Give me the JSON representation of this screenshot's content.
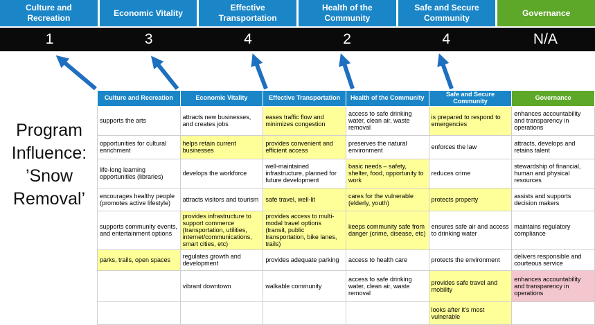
{
  "title": "Program Influence: ’Snow Removal’",
  "colors": {
    "header_blue": "#1a86c8",
    "header_green": "#5ea829",
    "band_bg": "#0a0a0a",
    "arrow_blue": "#1e6fc0",
    "highlight_yellow": "#ffff99",
    "highlight_pink": "#f4c7ce"
  },
  "scoreboard": {
    "columns": [
      {
        "label": "Culture and Recreation",
        "score": "1",
        "color": "blue"
      },
      {
        "label": "Economic Vitality",
        "score": "3",
        "color": "blue"
      },
      {
        "label": "Effective Transportation",
        "score": "4",
        "color": "blue"
      },
      {
        "label": "Health of the Community",
        "score": "2",
        "color": "blue"
      },
      {
        "label": "Safe and Secure Community",
        "score": "4",
        "color": "blue"
      },
      {
        "label": "Governance",
        "score": "N/A",
        "color": "green"
      }
    ]
  },
  "table": {
    "headers": [
      {
        "label": "Culture and Recreation",
        "color": "blue"
      },
      {
        "label": "Economic Vitality",
        "color": "blue"
      },
      {
        "label": "Effective Transportation",
        "color": "blue"
      },
      {
        "label": "Health of the Community",
        "color": "blue"
      },
      {
        "label": "Safe and Secure Community",
        "color": "blue"
      },
      {
        "label": "Governance",
        "color": "green"
      }
    ],
    "rows": [
      [
        {
          "text": "supports the arts",
          "hl": "none"
        },
        {
          "text": "attracts new businesses, and creates jobs",
          "hl": "none"
        },
        {
          "text": "eases traffic flow and minimizes congestion",
          "hl": "yellow"
        },
        {
          "text": "access to safe drinking water, clean air, waste removal",
          "hl": "none"
        },
        {
          "text": "is prepared to respond to emergencies",
          "hl": "yellow"
        },
        {
          "text": "enhances accountability and transparency in operations",
          "hl": "none"
        }
      ],
      [
        {
          "text": "opportunities for cultural enrichment",
          "hl": "none"
        },
        {
          "text": "helps retain current businesses",
          "hl": "yellow"
        },
        {
          "text": "provides convenient and efficient access",
          "hl": "yellow"
        },
        {
          "text": "preserves the natural environment",
          "hl": "none"
        },
        {
          "text": "enforces the law",
          "hl": "none"
        },
        {
          "text": "attracts, develops and retains talent",
          "hl": "none"
        }
      ],
      [
        {
          "text": "life-long learning opportunities (libraries)",
          "hl": "none"
        },
        {
          "text": "develops the workforce",
          "hl": "none"
        },
        {
          "text": "well-maintained infrastructure, planned for future development",
          "hl": "none"
        },
        {
          "text": "basic needs – safety, shelter, food, opportunity to work",
          "hl": "yellow"
        },
        {
          "text": "reduces crime",
          "hl": "none"
        },
        {
          "text": "stewardship of financial, human and physical resources",
          "hl": "none"
        }
      ],
      [
        {
          "text": "encourages healthy people (promotes active lifestyle)",
          "hl": "none"
        },
        {
          "text": "attracts visitors and tourism",
          "hl": "none"
        },
        {
          "text": "safe travel, well-lit",
          "hl": "yellow"
        },
        {
          "text": "cares for the vulnerable (elderly, youth)",
          "hl": "yellow"
        },
        {
          "text": "protects property",
          "hl": "yellow"
        },
        {
          "text": "assists and supports decision makers",
          "hl": "none"
        }
      ],
      [
        {
          "text": "supports community events, and entertainment options",
          "hl": "none"
        },
        {
          "text": "provides infrastructure to support commerce (transportation, utilities, internet/communications, smart cities, etc)",
          "hl": "yellow"
        },
        {
          "text": "provides access to multi-modal travel options (transit, public transportation, bike lanes, trails)",
          "hl": "yellow"
        },
        {
          "text": "keeps community safe from danger (crime, disease, etc)",
          "hl": "yellow"
        },
        {
          "text": "ensures safe air and access to drinking water",
          "hl": "none"
        },
        {
          "text": "maintains regulatory compliance",
          "hl": "none"
        }
      ],
      [
        {
          "text": "parks, trails, open spaces",
          "hl": "yellow"
        },
        {
          "text": "regulates growth and development",
          "hl": "none"
        },
        {
          "text": "provides adequate parking",
          "hl": "none"
        },
        {
          "text": "access to health care",
          "hl": "none"
        },
        {
          "text": "protects the environment",
          "hl": "none"
        },
        {
          "text": "delivers responsible and courteous service",
          "hl": "none"
        }
      ],
      [
        {
          "text": "",
          "hl": "none"
        },
        {
          "text": "vibrant downtown",
          "hl": "none"
        },
        {
          "text": "walkable community",
          "hl": "none"
        },
        {
          "text": "access to safe drinking water, clean air, waste removal",
          "hl": "none"
        },
        {
          "text": "provides safe travel and mobility",
          "hl": "yellow"
        },
        {
          "text": "enhances accountability and transparency in operations",
          "hl": "pink"
        }
      ],
      [
        {
          "text": "",
          "hl": "none"
        },
        {
          "text": "",
          "hl": "none"
        },
        {
          "text": "",
          "hl": "none"
        },
        {
          "text": "",
          "hl": "none"
        },
        {
          "text": "looks after it's most vulnerable",
          "hl": "yellow"
        },
        {
          "text": "",
          "hl": "none"
        }
      ]
    ]
  }
}
